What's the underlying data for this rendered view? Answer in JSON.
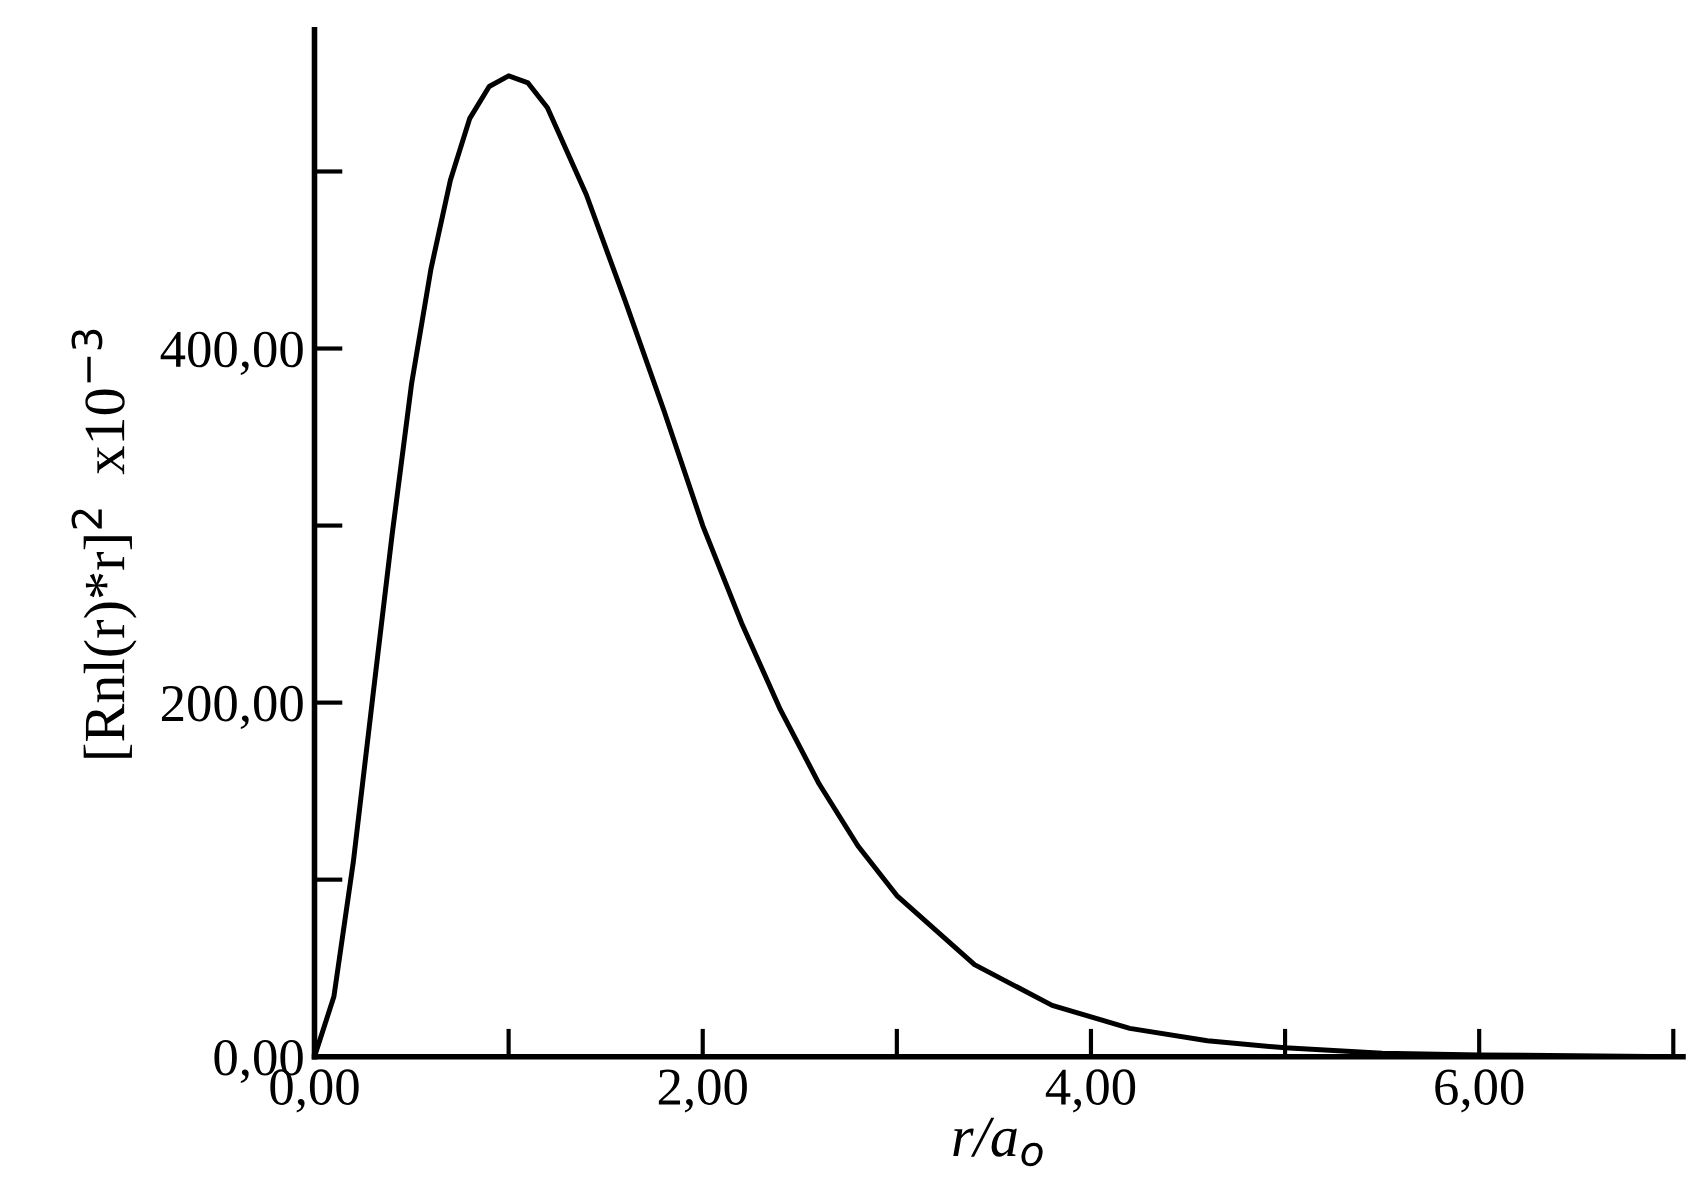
{
  "chart_data": {
    "type": "line",
    "xlabel": "r/a$_{o}$",
    "ylabel": "[Rnl(r)*r]$^{2}$  x10$^{−3}$",
    "x": [
      0,
      0.1,
      0.2,
      0.3,
      0.4,
      0.5,
      0.6,
      0.7,
      0.8,
      0.9,
      1.0,
      1.1,
      1.2,
      1.4,
      1.6,
      1.8,
      2.0,
      2.2,
      2.4,
      2.6,
      2.8,
      3.0,
      3.4,
      3.8,
      4.2,
      4.6,
      5.0,
      5.5,
      6.0,
      7.0
    ],
    "series": [
      {
        "color": "#000000",
        "values": [
          0,
          34,
          110,
          203,
          295,
          380,
          445,
          495,
          530,
          548,
          554,
          550,
          536,
          487,
          427,
          365,
          300,
          245,
          196,
          154,
          119,
          91,
          52,
          29,
          16,
          9,
          5,
          2,
          1,
          0
        ]
      }
    ],
    "xlim": [
      0,
      7.05
    ],
    "ylim": [
      0,
      580
    ],
    "xticks": [
      {
        "value": 0,
        "label": "0,00"
      },
      {
        "value": 1,
        "label": null
      },
      {
        "value": 2,
        "label": "2,00"
      },
      {
        "value": 3,
        "label": null
      },
      {
        "value": 4,
        "label": "4,00"
      },
      {
        "value": 5,
        "label": null
      },
      {
        "value": 6,
        "label": "6,00"
      },
      {
        "value": 7,
        "label": null
      }
    ],
    "yticks": [
      {
        "value": 0,
        "label": "0,00"
      },
      {
        "value": 100,
        "label": null
      },
      {
        "value": 200,
        "label": "200,00"
      },
      {
        "value": 300,
        "label": null
      },
      {
        "value": 400,
        "label": "400,00"
      },
      {
        "value": 500,
        "label": null
      }
    ],
    "grid": false,
    "legend": false,
    "marker": "none",
    "line_style": "solid"
  }
}
